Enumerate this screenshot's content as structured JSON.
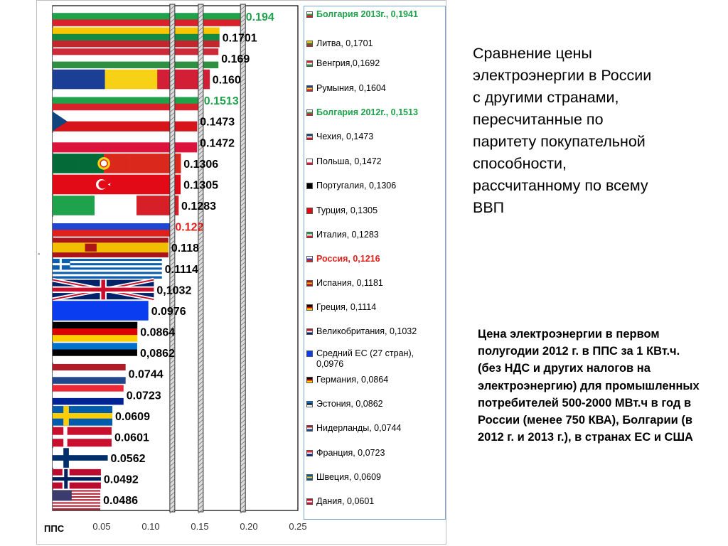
{
  "chart_data": {
    "type": "bar",
    "orientation": "horizontal",
    "categories": [
      "Болгария 2013г.",
      "Литва",
      "Венгрия",
      "Румыния",
      "Болгария 2012г.",
      "Чехия",
      "Польша",
      "Португалия",
      "Турция",
      "Италия",
      "Россия",
      "Испания",
      "Греция",
      "Великобритания",
      "Средний ЕС (27 стран)",
      "Германия",
      "Эстония",
      "Нидерланды",
      "Франция",
      "Швеция",
      "Дания",
      "Финляндия",
      "Норвегия",
      "США"
    ],
    "values": [
      0.194,
      0.1701,
      0.169,
      0.16,
      0.1513,
      0.1473,
      0.1472,
      0.1306,
      0.1305,
      0.1283,
      0.122,
      0.118,
      0.1114,
      0.1032,
      0.0976,
      0.0864,
      0.0862,
      0.0744,
      0.0723,
      0.0609,
      0.0601,
      0.0562,
      0.0492,
      0.0486
    ],
    "value_labels": [
      "0.194",
      "0.1701",
      "0.169",
      "0.160",
      "0.1513",
      "0.1473",
      "0.1472",
      "0.1306",
      "0.1305",
      "0.1283",
      "0.122",
      "0.118",
      "0.1114",
      "0,1032",
      "0.0976",
      "0.0864",
      "0,0862",
      "0.0744",
      "0.0723",
      "0.0609",
      "0.0601",
      "0.0562",
      "0.0492",
      "0.0486"
    ],
    "label_colors": [
      "#1ea24b",
      "#000000",
      "#000000",
      "#000000",
      "#1ea24b",
      "#000000",
      "#000000",
      "#000000",
      "#000000",
      "#000000",
      "#e0201b",
      "#000000",
      "#000000",
      "#000000",
      "#000000",
      "#000000",
      "#000000",
      "#000000",
      "#000000",
      "#000000",
      "#000000",
      "#000000",
      "#000000",
      "#000000"
    ],
    "flags": [
      "bulgaria",
      "lithuania",
      "hungary",
      "romania",
      "bulgaria",
      "czech",
      "poland",
      "portugal",
      "turkey",
      "italy",
      "russia",
      "spain",
      "greece",
      "uk",
      "eu",
      "germany",
      "estonia",
      "netherlands",
      "france",
      "sweden",
      "denmark",
      "finland",
      "norway",
      "usa"
    ],
    "xlim": [
      0.0,
      0.25
    ],
    "xticks": [
      "0.05",
      "0.10",
      "0.15",
      "0.20",
      "0.25"
    ],
    "xlabel": "ППС",
    "reference_lines_x": [
      0.122,
      0.151,
      0.194
    ]
  },
  "y_mark": "-",
  "legend": [
    {
      "text": "Болгария 2013г., 0,1941",
      "style": "green",
      "swatch": "bulgaria"
    },
    {
      "text": "Литва, 0,1701",
      "style": "normal",
      "swatch": "lithuania"
    },
    {
      "text": "Венгрия,0,1692",
      "style": "normal",
      "swatch": "hungary"
    },
    {
      "text": "Румыния, 0,1604",
      "style": "normal",
      "swatch": "romania"
    },
    {
      "text": "Болгария 2012г., 0,1513",
      "style": "green",
      "swatch": "bulgaria"
    },
    {
      "text": "Чехия, 0,1473",
      "style": "normal",
      "swatch": "czech"
    },
    {
      "text": "Польша, 0,1472",
      "style": "normal",
      "swatch": "poland"
    },
    {
      "text": "Португалия, 0,1306",
      "style": "normal",
      "swatch": "black"
    },
    {
      "text": "Турция, 0,1305",
      "style": "normal",
      "swatch": "turkey"
    },
    {
      "text": "Италия, 0,1283",
      "style": "normal",
      "swatch": "italy"
    },
    {
      "text": "Россия, 0,1216",
      "style": "red",
      "swatch": "russia"
    },
    {
      "text": "Испания, 0,1181",
      "style": "normal",
      "swatch": "spain"
    },
    {
      "text": "Греция, 0,1114",
      "style": "normal",
      "swatch": "germany"
    },
    {
      "text": "Великобритания, 0,1032",
      "style": "normal",
      "swatch": "uk"
    },
    {
      "text": "Средний ЕС (27 стран), 0,0976",
      "style": "normal",
      "swatch": "eu"
    },
    {
      "text": "Германия, 0,0864",
      "style": "normal",
      "swatch": "germany"
    },
    {
      "text": "Эстония, 0,0862",
      "style": "normal",
      "swatch": "estonia"
    },
    {
      "text": "Нидерланды, 0,0744",
      "style": "normal",
      "swatch": "netherlands"
    },
    {
      "text": "Франция, 0,0723",
      "style": "normal",
      "swatch": "france"
    },
    {
      "text": "Швеция, 0,0609",
      "style": "normal",
      "swatch": "sweden"
    },
    {
      "text": "Дания, 0,0601",
      "style": "normal",
      "swatch": "denmark"
    }
  ],
  "title": "Сравнение цены электроэнергии в России с другими странами, пересчитанные по паритету покупательной способности, рассчитанному по всему ВВП",
  "note": "Цена электроэнергии  в первом полугодии 2012 г. в ППС за 1 КВт.ч. (без НДС и других налогов на электроэнергию) для промышленных потребителей 500-2000 МВт.ч в год в России (менее 750 КВА), Болгарии (в 2012 г. и 2013 г.), в странах ЕС и США"
}
